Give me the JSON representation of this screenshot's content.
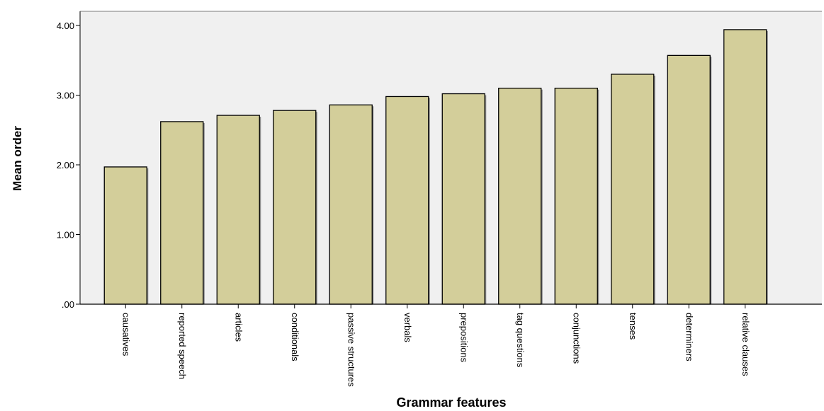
{
  "chart_data": {
    "type": "bar",
    "title": "",
    "xlabel": "Grammar features",
    "ylabel": "Mean order",
    "ylim": [
      0,
      4.0
    ],
    "yticks": [
      0,
      1,
      2,
      3,
      4
    ],
    "ytick_labels": [
      ".00",
      "1.00",
      "2.00",
      "3.00",
      "4.00"
    ],
    "categories": [
      "causatives",
      "reported speech",
      "articles",
      "conditionals",
      "passive structures",
      "verbals",
      "prepositions",
      "tag questions",
      "conjunctions",
      "tenses",
      "determiners",
      "relative clauses"
    ],
    "values": [
      1.97,
      2.62,
      2.71,
      2.78,
      2.86,
      2.98,
      3.02,
      3.1,
      3.1,
      3.3,
      3.57,
      3.94
    ],
    "grid": false,
    "colors": {
      "plot_background": "#f0f0f0",
      "bar_fill": "#d3ce9a",
      "bar_stroke": "#000000",
      "axis": "#000000"
    }
  }
}
